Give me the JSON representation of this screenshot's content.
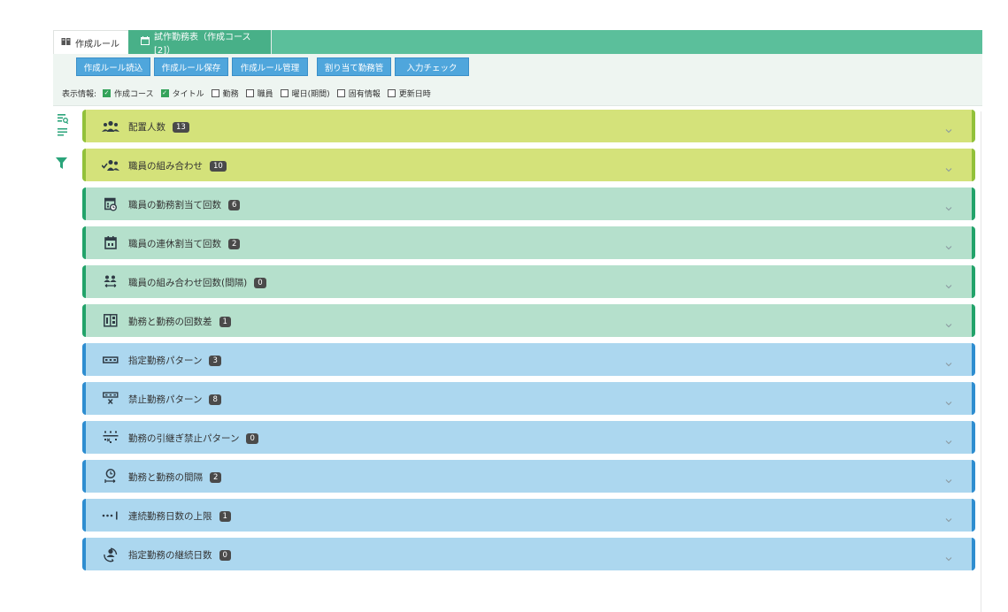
{
  "tabs": [
    {
      "label": "作成ルール",
      "icon": "book-icon"
    },
    {
      "label": "試作勤務表（作成コース[2]）",
      "icon": "calendar-icon"
    }
  ],
  "toolbar": {
    "buttons": [
      "作成ルール読込",
      "作成ルール保存",
      "作成ルール管理",
      "割り当て勤務管",
      "入力チェック"
    ]
  },
  "display_info": {
    "label": "表示情報:",
    "options": [
      {
        "label": "作成コース",
        "checked": true
      },
      {
        "label": "タイトル",
        "checked": true
      },
      {
        "label": "勤務",
        "checked": false
      },
      {
        "label": "職員",
        "checked": false
      },
      {
        "label": "曜日(期間)",
        "checked": false
      },
      {
        "label": "固有情報",
        "checked": false
      },
      {
        "label": "更新日時",
        "checked": false
      }
    ]
  },
  "sections": [
    {
      "title": "配置人数",
      "count": "13",
      "color": "yellow",
      "icon": "people-group-icon"
    },
    {
      "title": "職員の組み合わせ",
      "count": "10",
      "color": "yellow",
      "icon": "staff-combination-icon"
    },
    {
      "title": "職員の勤務割当て回数",
      "count": "6",
      "color": "green",
      "icon": "schedule-clock-icon"
    },
    {
      "title": "職員の連休割当て回数",
      "count": "2",
      "color": "green",
      "icon": "calendar-icon"
    },
    {
      "title": "職員の組み合わせ回数(間隔)",
      "count": "0",
      "color": "green",
      "icon": "people-interval-icon"
    },
    {
      "title": "勤務と勤務の回数差",
      "count": "1",
      "color": "green",
      "icon": "count-diff-icon"
    },
    {
      "title": "指定勤務パターン",
      "count": "3",
      "color": "blue",
      "icon": "pattern-icon"
    },
    {
      "title": "禁止勤務パターン",
      "count": "8",
      "color": "blue",
      "icon": "forbidden-pattern-icon"
    },
    {
      "title": "勤務の引継ぎ禁止パターン",
      "count": "0",
      "color": "blue",
      "icon": "handover-forbidden-icon"
    },
    {
      "title": "勤務と勤務の間隔",
      "count": "2",
      "color": "blue",
      "icon": "interval-clock-icon"
    },
    {
      "title": "連続勤務日数の上限",
      "count": "1",
      "color": "blue",
      "icon": "consecutive-limit-icon"
    },
    {
      "title": "指定勤務の継続日数",
      "count": "0",
      "color": "blue",
      "icon": "continuation-icon"
    }
  ],
  "colors": {
    "tab_bar": "#5bbf9b",
    "button": "#4fa6dc",
    "yellow": "#d4e27a",
    "green": "#b5e0cc",
    "blue": "#acd7ef"
  }
}
